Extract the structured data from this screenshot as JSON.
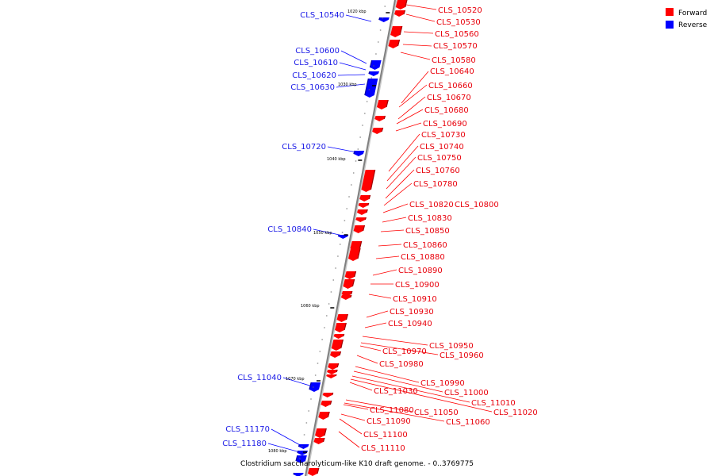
{
  "caption": "Clostridium saccharolyticum-like K10 draft genome. - 0..3769775",
  "legend": [
    {
      "label": "Forward",
      "color": "#ff0000"
    },
    {
      "label": "Reverse",
      "color": "#0000ff"
    }
  ],
  "colors": {
    "forward": "#ff0000",
    "reverse": "#0000ff",
    "backbone": "#808080"
  },
  "tick_labels": [
    "1020 kbp",
    "1030 kbp",
    "1040 kbp",
    "1050 kbp",
    "1060 kbp",
    "1070 kbp",
    "1080 kbp"
  ],
  "forward_genes": [
    "CLS_10520",
    "CLS_10530",
    "CLS_10560",
    "CLS_10570",
    "CLS_10580",
    "CLS_10640",
    "CLS_10660",
    "CLS_10670",
    "CLS_10680",
    "CLS_10690",
    "CLS_10730",
    "CLS_10740",
    "CLS_10750",
    "CLS_10760",
    "CLS_10780",
    "CLS_10820",
    "CLS_10800",
    "CLS_10830",
    "CLS_10850",
    "CLS_10860",
    "CLS_10880",
    "CLS_10890",
    "CLS_10900",
    "CLS_10910",
    "CLS_10930",
    "CLS_10940",
    "CLS_10950",
    "CLS_10960",
    "CLS_10970",
    "CLS_10980",
    "CLS_10990",
    "CLS_11000",
    "CLS_11010",
    "CLS_11020",
    "CLS_11030",
    "CLS_11050",
    "CLS_11060",
    "CLS_11080",
    "CLS_11090",
    "CLS_11100",
    "CLS_11110"
  ],
  "reverse_genes": [
    "CLS_10540",
    "CLS_10600",
    "CLS_10610",
    "CLS_10620",
    "CLS_10630",
    "CLS_10720",
    "CLS_10840",
    "CLS_11040",
    "CLS_11170",
    "CLS_11180"
  ]
}
